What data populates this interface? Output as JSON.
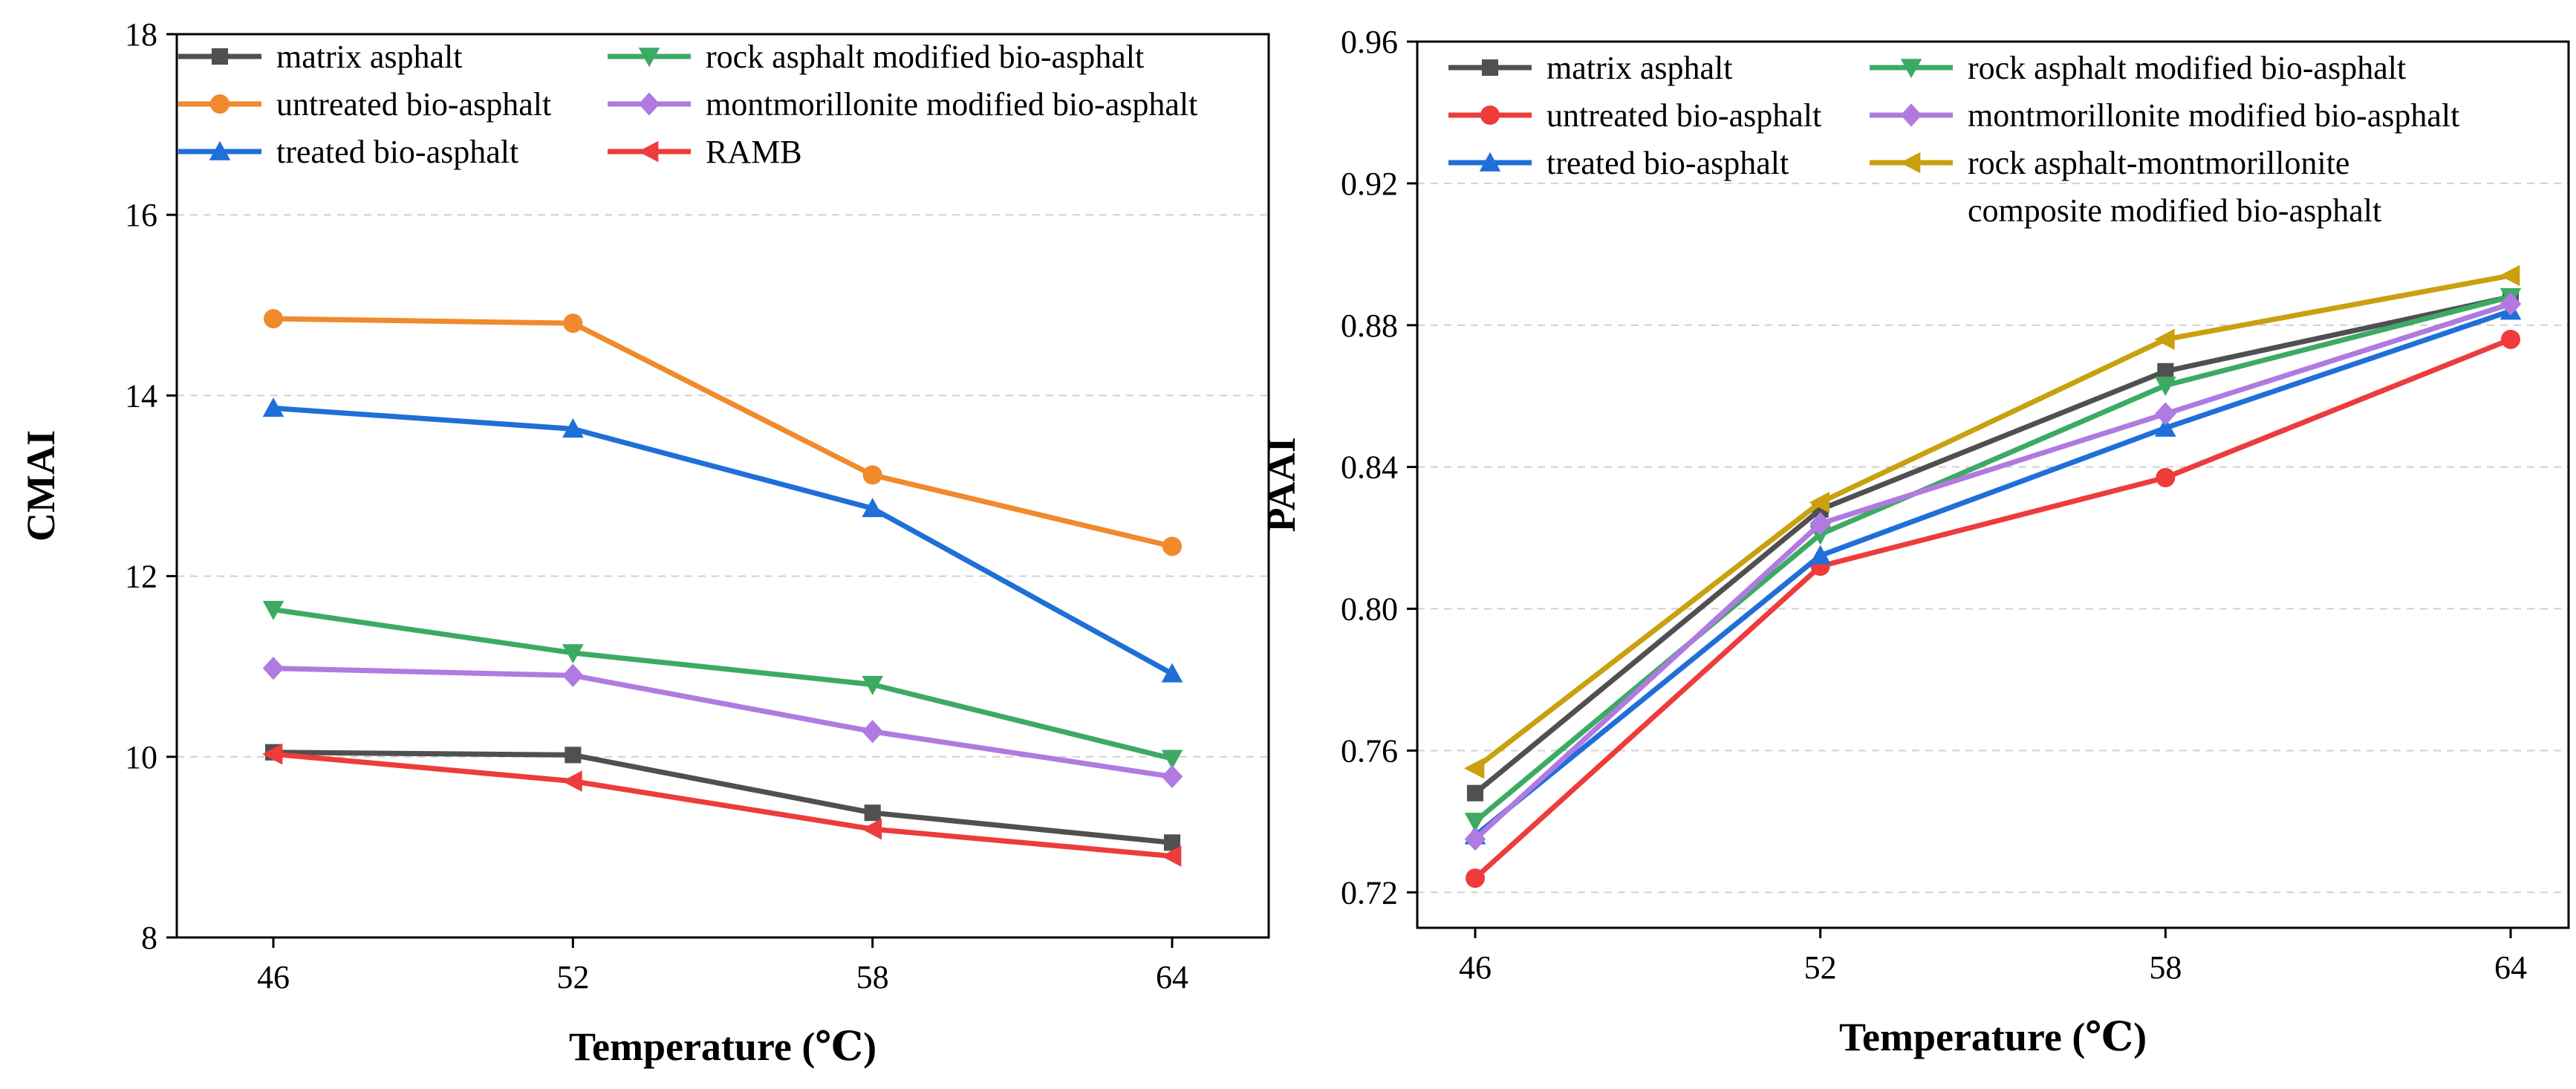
{
  "chart_data": [
    {
      "type": "line",
      "id": "cmai",
      "title": "",
      "xlabel": "Temperature (℃)",
      "ylabel": "CMAI",
      "categories": [
        "46",
        "52",
        "58",
        "64"
      ],
      "ylim": [
        8,
        18
      ],
      "yticks": [
        "8",
        "10",
        "12",
        "14",
        "16",
        "18"
      ],
      "ytick_values": [
        8,
        10,
        12,
        14,
        16,
        18
      ],
      "grid": true,
      "legend_position": "top-left",
      "series": [
        {
          "name": "matrix asphalt",
          "color": "#505050",
          "marker": "square",
          "values": [
            10.05,
            10.02,
            9.38,
            9.05
          ]
        },
        {
          "name": "untreated bio-asphalt",
          "color": "#F08A2C",
          "marker": "circle",
          "values": [
            14.85,
            14.8,
            13.12,
            12.33
          ]
        },
        {
          "name": "treated bio-asphalt",
          "color": "#1F6FD8",
          "marker": "triangle-up",
          "values": [
            13.86,
            13.63,
            12.75,
            10.92
          ]
        },
        {
          "name": "rock asphalt modified bio-asphalt",
          "color": "#3DAA64",
          "marker": "triangle-down",
          "values": [
            11.63,
            11.15,
            10.8,
            9.98
          ]
        },
        {
          "name": "montmorillonite modified bio-asphalt",
          "color": "#B07AE0",
          "marker": "diamond",
          "values": [
            10.98,
            10.9,
            10.28,
            9.78
          ]
        },
        {
          "name": "RAMB",
          "color": "#EE3B3B",
          "marker": "triangle-left",
          "values": [
            10.03,
            9.73,
            9.2,
            8.9
          ]
        }
      ]
    },
    {
      "type": "line",
      "id": "paai",
      "title": "",
      "xlabel": "Temperature (℃)",
      "ylabel": "PAAI",
      "categories": [
        "46",
        "52",
        "58",
        "64"
      ],
      "ylim": [
        0.71,
        0.96
      ],
      "yticks": [
        "0.72",
        "0.76",
        "0.80",
        "0.84",
        "0.88",
        "0.92",
        "0.96"
      ],
      "ytick_values": [
        0.72,
        0.76,
        0.8,
        0.84,
        0.88,
        0.92,
        0.96
      ],
      "grid": true,
      "legend_position": "top",
      "series": [
        {
          "name": "matrix asphalt",
          "color": "#505050",
          "marker": "square",
          "values": [
            0.748,
            0.828,
            0.867,
            0.888
          ]
        },
        {
          "name": "untreated bio-asphalt",
          "color": "#EE3B3B",
          "marker": "circle",
          "values": [
            0.724,
            0.812,
            0.837,
            0.876
          ]
        },
        {
          "name": "treated bio-asphalt",
          "color": "#1F6FD8",
          "marker": "triangle-up",
          "values": [
            0.736,
            0.815,
            0.851,
            0.884
          ]
        },
        {
          "name": "rock asphalt modified bio-asphalt",
          "color": "#3DAA64",
          "marker": "triangle-down",
          "values": [
            0.74,
            0.821,
            0.863,
            0.888
          ]
        },
        {
          "name": "montmorillonite modified bio-asphalt",
          "color": "#B07AE0",
          "marker": "diamond",
          "values": [
            0.735,
            0.824,
            0.855,
            0.886
          ]
        },
        {
          "name": "rock asphalt-montmorillonite composite modified bio-asphalt",
          "legend_lines": [
            "rock asphalt-montmorillonite",
            "composite modified bio-asphalt"
          ],
          "color": "#C9A00E",
          "marker": "triangle-left",
          "values": [
            0.755,
            0.83,
            0.876,
            0.894
          ]
        }
      ]
    }
  ]
}
